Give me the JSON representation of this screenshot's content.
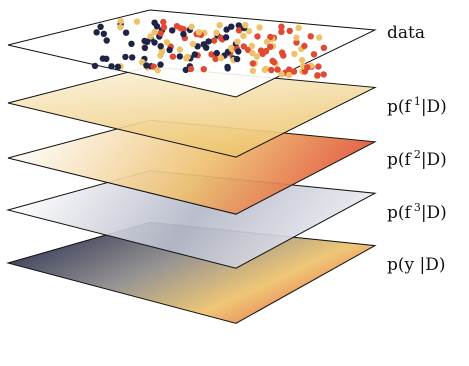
{
  "layers": [
    {
      "label": {
        "base": "data"
      }
    },
    {
      "label": {
        "base": "p(f",
        "sup": "1",
        "end": "|D)"
      }
    },
    {
      "label": {
        "base": "p(f",
        "sup": "2",
        "end": "|D)"
      }
    },
    {
      "label": {
        "base": "p(f",
        "sup": "3",
        "end": "|D)"
      }
    },
    {
      "label": {
        "base": "p(y",
        "end": " |D)"
      }
    }
  ]
}
